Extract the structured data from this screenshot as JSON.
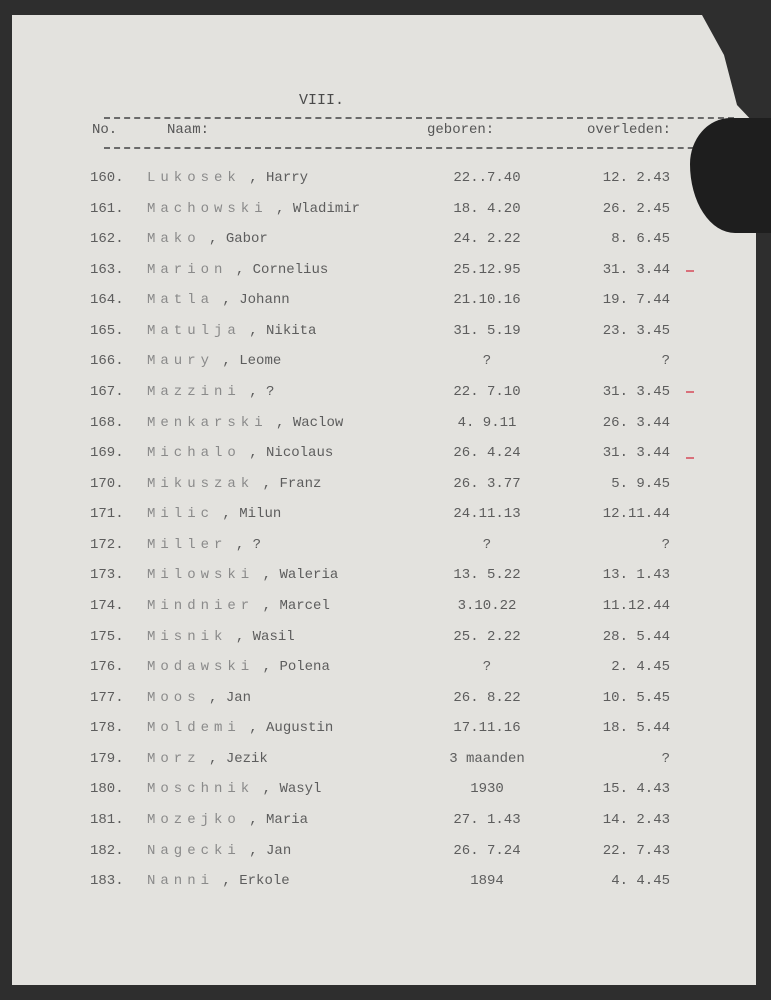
{
  "page_number": "VIII.",
  "headers": {
    "no": "No.",
    "naam": "Naam:",
    "geboren": "geboren:",
    "overleden": "overleden:"
  },
  "rows": [
    {
      "no": "160.",
      "surname": "Lukosek",
      "given": "Harry",
      "geboren": "22..7.40",
      "overleden": "12. 2.43"
    },
    {
      "no": "161.",
      "surname": "Machowski",
      "given": "Wladimir",
      "geboren": "18. 4.20",
      "overleden": "26. 2.45"
    },
    {
      "no": "162.",
      "surname": "Mako",
      "given": "Gabor",
      "geboren": "24. 2.22",
      "overleden": "8. 6.45"
    },
    {
      "no": "163.",
      "surname": "Marion",
      "given": "Cornelius",
      "geboren": "25.12.95",
      "overleden": "31. 3.44"
    },
    {
      "no": "164.",
      "surname": "Matla",
      "given": "Johann",
      "geboren": "21.10.16",
      "overleden": "19. 7.44"
    },
    {
      "no": "165.",
      "surname": "Matulja",
      "given": "Nikita",
      "geboren": "31. 5.19",
      "overleden": "23. 3.45"
    },
    {
      "no": "166.",
      "surname": "Maury",
      "given": "Leome",
      "geboren": "?",
      "overleden": "?"
    },
    {
      "no": "167.",
      "surname": "Mazzini",
      "given": "?",
      "geboren": "22. 7.10",
      "overleden": "31. 3.45"
    },
    {
      "no": "168.",
      "surname": "Menkarski",
      "given": "Waclow",
      "geboren": "4. 9.11",
      "overleden": "26. 3.44"
    },
    {
      "no": "169.",
      "surname": "Michalo",
      "given": "Nicolaus",
      "geboren": "26. 4.24",
      "overleden": "31. 3.44"
    },
    {
      "no": "170.",
      "surname": "Mikuszak",
      "given": "Franz",
      "geboren": "26. 3.77",
      "overleden": "5. 9.45"
    },
    {
      "no": "171.",
      "surname": "Milic",
      "given": "Milun",
      "geboren": "24.11.13",
      "overleden": "12.11.44"
    },
    {
      "no": "172.",
      "surname": "Miller",
      "given": "?",
      "geboren": "?",
      "overleden": "?"
    },
    {
      "no": "173.",
      "surname": "Milowski",
      "given": "Waleria",
      "geboren": "13. 5.22",
      "overleden": "13. 1.43"
    },
    {
      "no": "174.",
      "surname": "Mindnier",
      "given": "Marcel",
      "geboren": "3.10.22",
      "overleden": "11.12.44"
    },
    {
      "no": "175.",
      "surname": "Misnik",
      "given": "Wasil",
      "geboren": "25. 2.22",
      "overleden": "28. 5.44"
    },
    {
      "no": "176.",
      "surname": "Modawski",
      "given": "Polena",
      "geboren": "?",
      "overleden": "2. 4.45"
    },
    {
      "no": "177.",
      "surname": "Moos",
      "given": "Jan",
      "geboren": "26. 8.22",
      "overleden": "10. 5.45"
    },
    {
      "no": "178.",
      "surname": "Moldemi",
      "given": "Augustin",
      "geboren": "17.11.16",
      "overleden": "18. 5.44"
    },
    {
      "no": "179.",
      "surname": "Morz",
      "given": "Jezik",
      "geboren": "3 maanden",
      "overleden": "?"
    },
    {
      "no": "180.",
      "surname": "Moschnik",
      "given": "Wasyl",
      "geboren": "1930",
      "overleden": "15. 4.43"
    },
    {
      "no": "181.",
      "surname": "Mozejko",
      "given": "Maria",
      "geboren": "27. 1.43",
      "overleden": "14. 2.43"
    },
    {
      "no": "182.",
      "surname": "Nagecki",
      "given": "Jan",
      "geboren": "26. 7.24",
      "overleden": "22. 7.43"
    },
    {
      "no": "183.",
      "surname": "Nanni",
      "given": "Erkole",
      "geboren": "1894",
      "overleden": "4. 4.45"
    }
  ],
  "colors": {
    "paper": "#e3e2de",
    "ink": "#5d5d5d",
    "red_mark": "#d9707a"
  }
}
